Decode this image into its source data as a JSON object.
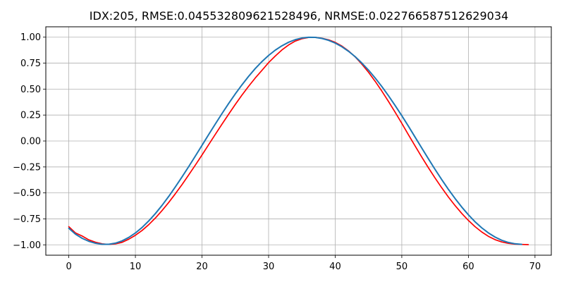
{
  "chart_data": {
    "type": "line",
    "title": "IDX:205, RMSE:0.045532809621528496, NRMSE:0.022766587512629034",
    "xlabel": "",
    "ylabel": "",
    "xlim": [
      -3.45,
      72.45
    ],
    "ylim": [
      -1.1,
      1.1
    ],
    "xticks": [
      0,
      10,
      20,
      30,
      40,
      50,
      60,
      70
    ],
    "yticks": [
      -1.0,
      -0.75,
      -0.5,
      -0.25,
      0.0,
      0.25,
      0.5,
      0.75,
      1.0
    ],
    "xtick_labels": [
      "0",
      "10",
      "20",
      "30",
      "40",
      "50",
      "60",
      "70"
    ],
    "ytick_labels": [
      "−1.00",
      "−0.75",
      "−0.50",
      "−0.25",
      "0.00",
      "0.25",
      "0.50",
      "0.75",
      "1.00"
    ],
    "grid": true,
    "legend": false,
    "series": [
      {
        "color": "#ff0000",
        "x": [
          0,
          1,
          2,
          3,
          4,
          5,
          6,
          7,
          8,
          9,
          10,
          11,
          12,
          13,
          14,
          15,
          16,
          17,
          18,
          19,
          20,
          21,
          22,
          23,
          24,
          25,
          26,
          27,
          28,
          29,
          30,
          31,
          32,
          33,
          34,
          35,
          36,
          37,
          38,
          39,
          40,
          41,
          42,
          43,
          44,
          45,
          46,
          47,
          48,
          49,
          50,
          51,
          52,
          53,
          54,
          55,
          56,
          57,
          58,
          59,
          60,
          61,
          62,
          63,
          64,
          65,
          66,
          67,
          68,
          69
        ],
        "y": [
          -0.825,
          -0.885,
          -0.915,
          -0.952,
          -0.975,
          -0.99,
          -0.996,
          -0.991,
          -0.976,
          -0.946,
          -0.908,
          -0.862,
          -0.806,
          -0.742,
          -0.67,
          -0.592,
          -0.508,
          -0.42,
          -0.327,
          -0.232,
          -0.135,
          -0.035,
          0.064,
          0.162,
          0.258,
          0.352,
          0.442,
          0.527,
          0.607,
          0.68,
          0.755,
          0.818,
          0.877,
          0.925,
          0.962,
          0.985,
          0.997,
          0.998,
          0.99,
          0.975,
          0.95,
          0.915,
          0.868,
          0.81,
          0.74,
          0.662,
          0.575,
          0.481,
          0.381,
          0.277,
          0.17,
          0.06,
          -0.048,
          -0.155,
          -0.258,
          -0.357,
          -0.451,
          -0.54,
          -0.622,
          -0.697,
          -0.765,
          -0.825,
          -0.876,
          -0.918,
          -0.95,
          -0.972,
          -0.986,
          -0.993,
          -0.996,
          -0.998
        ]
      },
      {
        "color": "#1f77b4",
        "x": [
          0,
          1,
          2,
          3,
          4,
          5,
          6,
          7,
          8,
          9,
          10,
          11,
          12,
          13,
          14,
          15,
          16,
          17,
          18,
          19,
          20,
          21,
          22,
          23,
          24,
          25,
          26,
          27,
          28,
          29,
          30,
          31,
          32,
          33,
          34,
          35,
          36,
          37,
          38,
          39,
          40,
          41,
          42,
          43,
          44,
          45,
          46,
          47,
          48,
          49,
          50,
          51,
          52,
          53,
          54,
          55,
          56,
          57,
          58,
          59,
          60,
          61,
          62,
          63,
          64,
          65,
          66,
          67,
          68
        ],
        "y": [
          -0.84,
          -0.897,
          -0.937,
          -0.966,
          -0.985,
          -0.995,
          -0.995,
          -0.984,
          -0.962,
          -0.929,
          -0.886,
          -0.833,
          -0.77,
          -0.699,
          -0.62,
          -0.534,
          -0.442,
          -0.346,
          -0.247,
          -0.145,
          -0.042,
          0.062,
          0.164,
          0.264,
          0.361,
          0.454,
          0.541,
          0.623,
          0.698,
          0.765,
          0.824,
          0.875,
          0.917,
          0.951,
          0.976,
          0.992,
          0.999,
          0.998,
          0.988,
          0.97,
          0.943,
          0.908,
          0.864,
          0.812,
          0.751,
          0.683,
          0.607,
          0.525,
          0.436,
          0.342,
          0.244,
          0.142,
          0.037,
          -0.068,
          -0.172,
          -0.274,
          -0.372,
          -0.466,
          -0.554,
          -0.636,
          -0.711,
          -0.778,
          -0.836,
          -0.885,
          -0.925,
          -0.956,
          -0.977,
          -0.99,
          -0.996
        ]
      }
    ]
  }
}
